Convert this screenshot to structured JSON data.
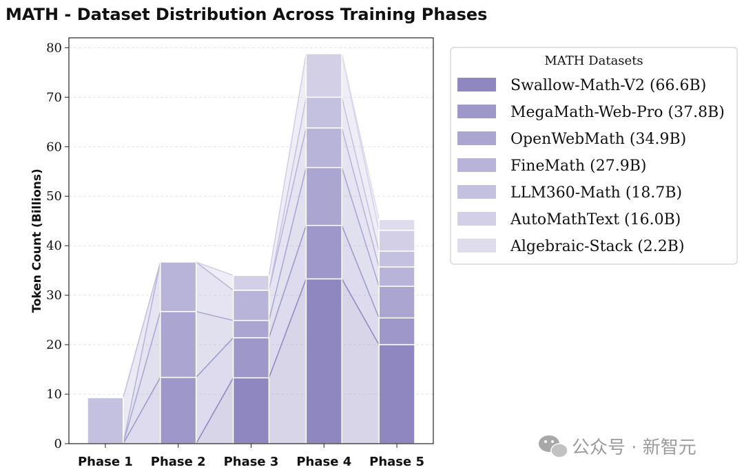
{
  "chart_data": {
    "type": "bar",
    "stacked": true,
    "title": "MATH - Dataset Distribution Across Training Phases",
    "xlabel": "",
    "ylabel": "Token Count (Billions)",
    "ylim": [
      0,
      82
    ],
    "yticks": [
      0,
      10,
      20,
      30,
      40,
      50,
      60,
      70,
      80
    ],
    "grid": "horizontal dashed",
    "categories": [
      "Phase 1",
      "Phase 2",
      "Phase 3",
      "Phase 4",
      "Phase 5"
    ],
    "legend_title": "MATH Datasets",
    "legend_position": "upper right, outside plot",
    "series": [
      {
        "name": "Swallow-Math-V2 (66.6B)",
        "color": "#8f88c0",
        "values": [
          0,
          0,
          13.3,
          33.3,
          20.0
        ]
      },
      {
        "name": "MegaMath-Web-Pro (37.8B)",
        "color": "#9e98ca",
        "values": [
          0,
          13.4,
          8.1,
          10.8,
          5.4
        ]
      },
      {
        "name": "OpenWebMath (34.9B)",
        "color": "#aaa5d1",
        "values": [
          0,
          13.3,
          3.5,
          11.7,
          6.4
        ]
      },
      {
        "name": "FineMath (27.9B)",
        "color": "#b7b3d9",
        "values": [
          0,
          10.0,
          6.1,
          8.0,
          3.9
        ]
      },
      {
        "name": "LLM360-Math (18.7B)",
        "color": "#c4c1e0",
        "values": [
          9.3,
          0,
          0,
          6.2,
          3.2
        ]
      },
      {
        "name": "AutoMathText (16.0B)",
        "color": "#d2cfe7",
        "values": [
          0,
          0,
          3.0,
          8.8,
          4.2
        ]
      },
      {
        "name": "Algebraic-Stack (2.2B)",
        "color": "#dfdded",
        "values": [
          0,
          0,
          0,
          0,
          2.2
        ]
      }
    ]
  },
  "watermark": {
    "icon": "wechat-icon",
    "text": "公众号 · 新智元"
  }
}
